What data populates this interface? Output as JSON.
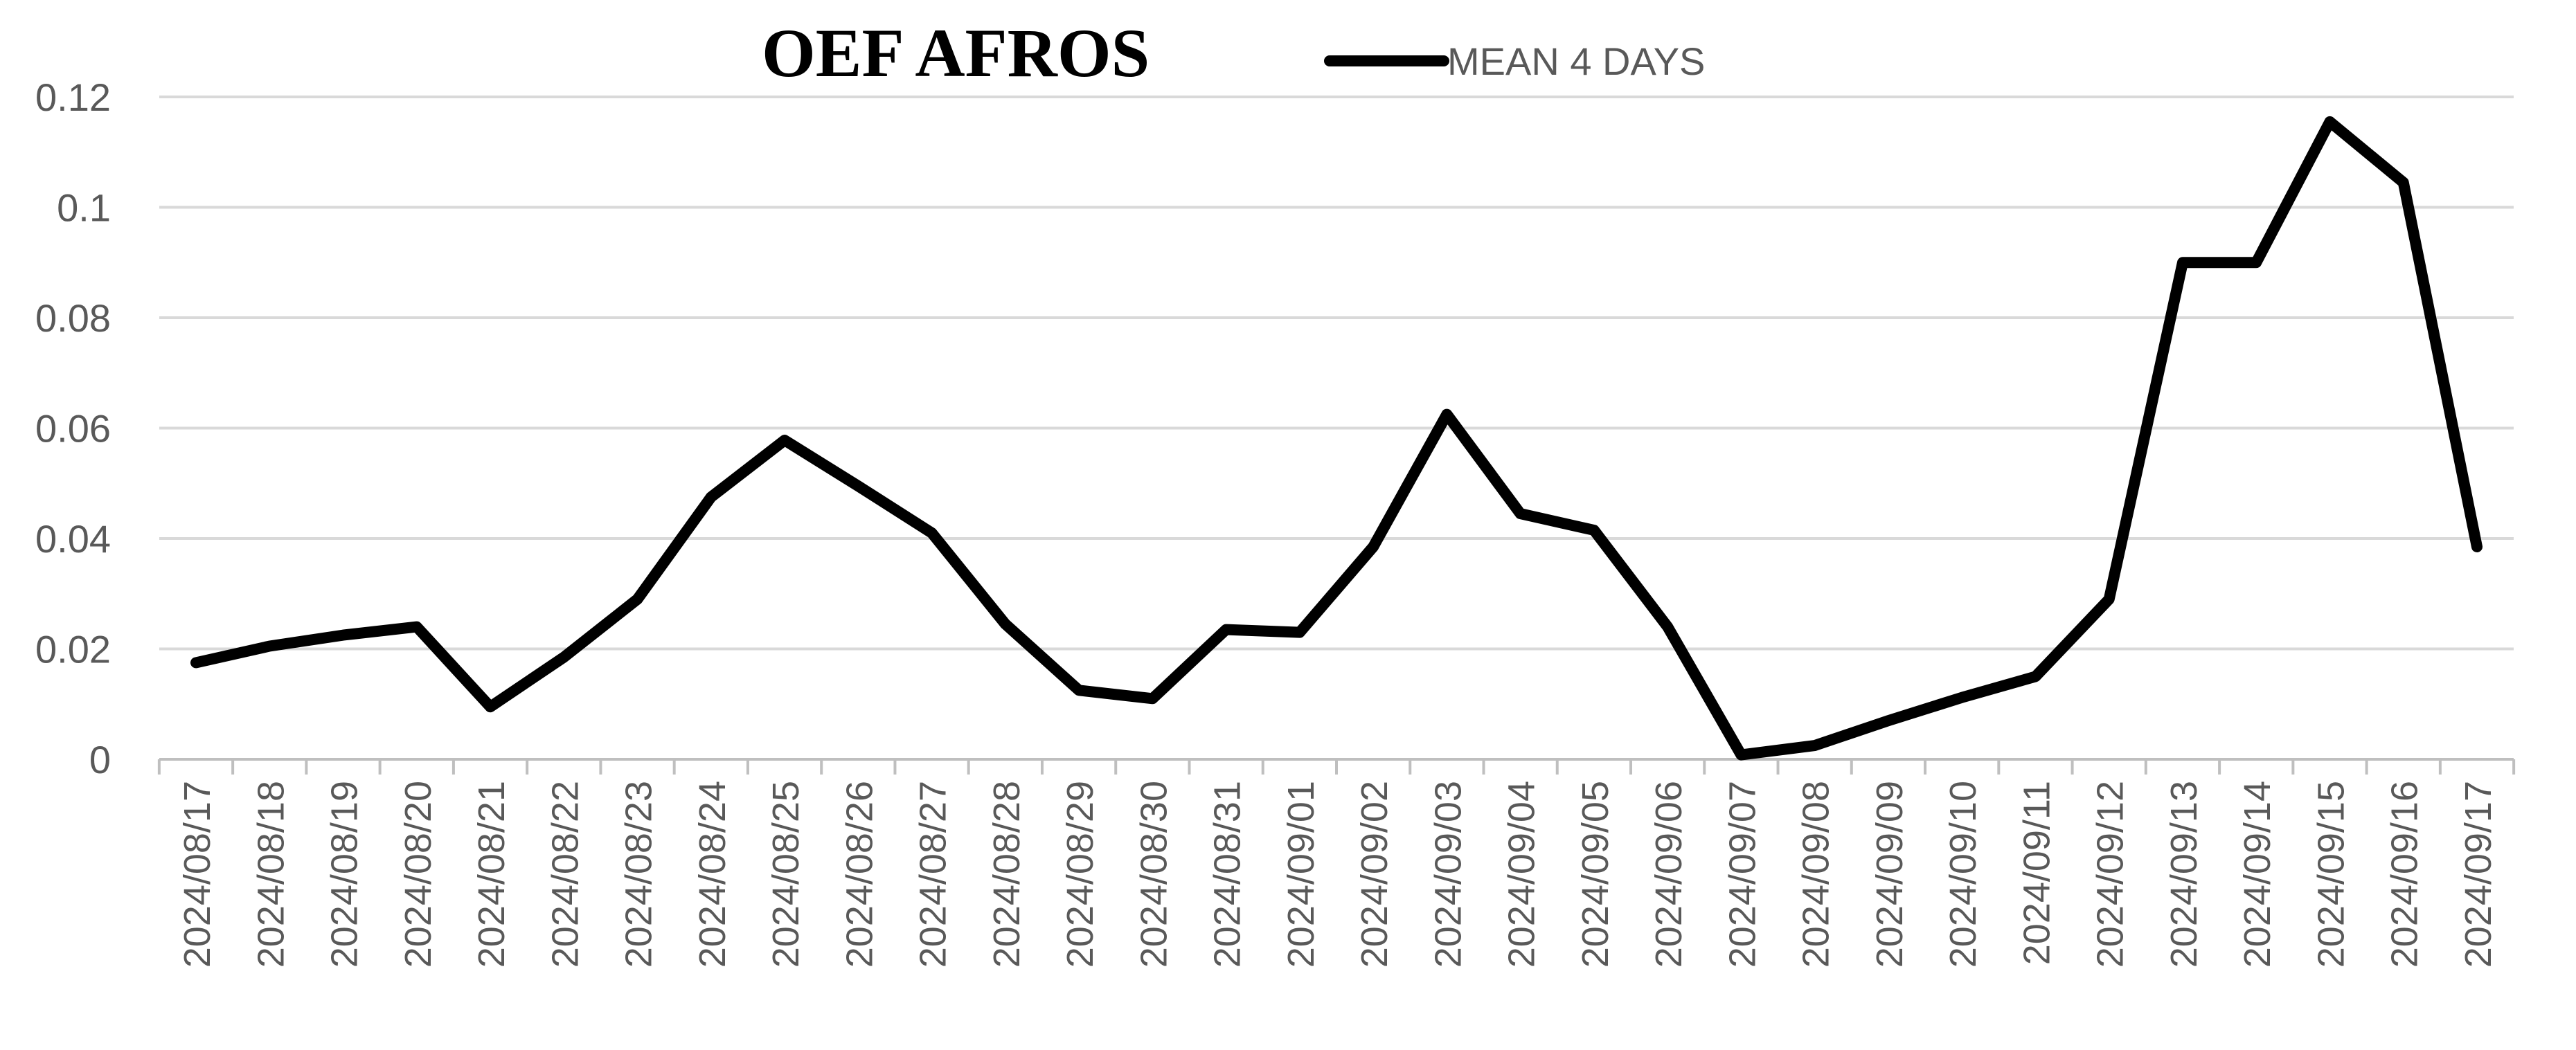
{
  "chart_data": {
    "type": "line",
    "title": "OEF AFROS",
    "xlabel": "",
    "ylabel": "",
    "ylim": [
      0,
      0.12
    ],
    "yticks": [
      {
        "value": 0,
        "label": "0"
      },
      {
        "value": 0.02,
        "label": "0.02"
      },
      {
        "value": 0.04,
        "label": "0.04"
      },
      {
        "value": 0.06,
        "label": "0.06"
      },
      {
        "value": 0.08,
        "label": "0.08"
      },
      {
        "value": 0.1,
        "label": "0.1"
      },
      {
        "value": 0.12,
        "label": "0.12"
      }
    ],
    "grid": "horizontal",
    "legend": "top",
    "categories": [
      "2024/08/17",
      "2024/08/18",
      "2024/08/19",
      "2024/08/20",
      "2024/08/21",
      "2024/08/22",
      "2024/08/23",
      "2024/08/24",
      "2024/08/25",
      "2024/08/26",
      "2024/08/27",
      "2024/08/28",
      "2024/08/29",
      "2024/08/30",
      "2024/08/31",
      "2024/09/01",
      "2024/09/02",
      "2024/09/03",
      "2024/09/04",
      "2024/09/05",
      "2024/09/06",
      "2024/09/07",
      "2024/09/08",
      "2024/09/09",
      "2024/09/10",
      "2024/09/11",
      "2024/09/12",
      "2024/09/13",
      "2024/09/14",
      "2024/09/15",
      "2024/09/16",
      "2024/09/17"
    ],
    "series": [
      {
        "name": "MEAN 4 DAYS",
        "color": "#000000",
        "values": [
          0.0175,
          0.0205,
          0.0225,
          0.024,
          0.0095,
          0.0185,
          0.029,
          0.0475,
          0.0578,
          0.0495,
          0.041,
          0.0245,
          0.0125,
          0.011,
          0.0235,
          0.023,
          0.0385,
          0.0625,
          0.0445,
          0.0415,
          0.024,
          0.0008,
          0.0025,
          0.007,
          0.0112,
          0.015,
          0.029,
          0.09,
          0.09,
          0.1155,
          0.1045,
          0.0385
        ]
      }
    ]
  },
  "colors": {
    "grid": "#d9d9d9",
    "axis": "#bfbfbf",
    "text": "#595959"
  }
}
